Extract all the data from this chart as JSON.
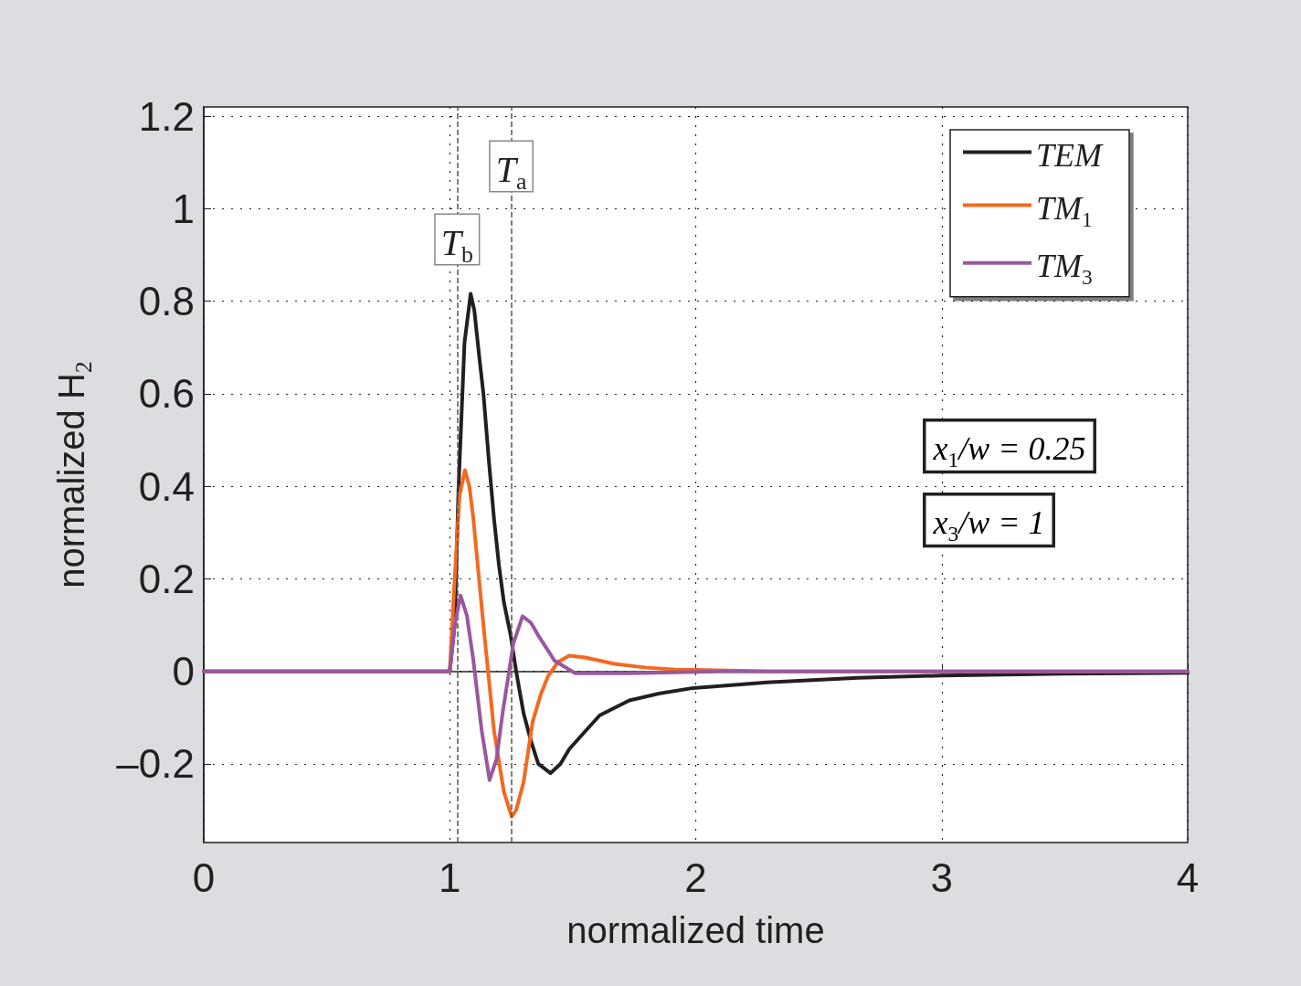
{
  "chart_data": {
    "type": "line",
    "xlabel": "normalized time",
    "ylabel": "normalized H$_{2}$",
    "xlim": [
      0,
      4
    ],
    "xticks": [
      0,
      1,
      2,
      3,
      4
    ],
    "ylim": [
      -0.37,
      1.22
    ],
    "yticks": [
      {
        "value": -0.2,
        "label": "–0.2"
      },
      0,
      0.2,
      0.4,
      0.6,
      0.8,
      1,
      1.2
    ],
    "grid": true,
    "legend": "top right",
    "marker": "none",
    "line_style": "solid",
    "series": [
      {
        "name": "TEM",
        "color": "#231f20",
        "x": [
          0,
          1.0,
          1.02,
          1.036,
          1.06,
          1.085,
          1.1,
          1.12,
          1.137,
          1.16,
          1.18,
          1.2,
          1.22,
          1.248,
          1.27,
          1.3,
          1.33,
          1.36,
          1.41,
          1.45,
          1.486,
          1.55,
          1.61,
          1.73,
          1.85,
          1.99,
          2.29,
          2.66,
          3.0,
          3.5,
          4.0
        ],
        "values": [
          0,
          0,
          0.1,
          0.4,
          0.71,
          0.816,
          0.78,
          0.68,
          0.6,
          0.45,
          0.33,
          0.23,
          0.15,
          0.077,
          0.0,
          -0.09,
          -0.15,
          -0.2,
          -0.22,
          -0.2,
          -0.168,
          -0.13,
          -0.095,
          -0.063,
          -0.048,
          -0.036,
          -0.024,
          -0.014,
          -0.009,
          -0.005,
          -0.003
        ]
      },
      {
        "name": "TM$_{1}$",
        "color": "#f26a21",
        "x": [
          0,
          1.0,
          1.02,
          1.04,
          1.062,
          1.08,
          1.096,
          1.137,
          1.18,
          1.22,
          1.252,
          1.27,
          1.3,
          1.337,
          1.37,
          1.4,
          1.44,
          1.486,
          1.55,
          1.67,
          1.8,
          1.92,
          2.3,
          4.0
        ],
        "values": [
          0,
          0,
          0.2,
          0.38,
          0.435,
          0.4,
          0.33,
          0.1,
          -0.128,
          -0.26,
          -0.314,
          -0.3,
          -0.24,
          -0.109,
          -0.05,
          -0.01,
          0.02,
          0.034,
          0.03,
          0.016,
          0.008,
          0.004,
          0,
          0
        ]
      },
      {
        "name": "TM$_{3}$",
        "color": "#99589e",
        "x": [
          0,
          1.0,
          1.02,
          1.044,
          1.07,
          1.096,
          1.13,
          1.162,
          1.19,
          1.215,
          1.259,
          1.296,
          1.33,
          1.363,
          1.426,
          1.51,
          1.73,
          2.1,
          4.0
        ],
        "values": [
          0,
          0,
          0.1,
          0.164,
          0.12,
          0.024,
          -0.128,
          -0.235,
          -0.19,
          -0.09,
          0.061,
          0.119,
          0.105,
          0.075,
          0.023,
          -0.004,
          -0.004,
          0,
          0
        ]
      }
    ],
    "ref_lines": [
      {
        "axis": "x",
        "value": 1.029,
        "label": "T$_{b}$",
        "color": "#555555",
        "line_style": "dashed"
      },
      {
        "axis": "x",
        "value": 1.248,
        "label": "T$_{a}$",
        "color": "#555555",
        "line_style": "dashed"
      }
    ],
    "annotations": [
      "x$_{1}$/w = 0.25",
      "x$_{3}$/w = 1"
    ]
  }
}
